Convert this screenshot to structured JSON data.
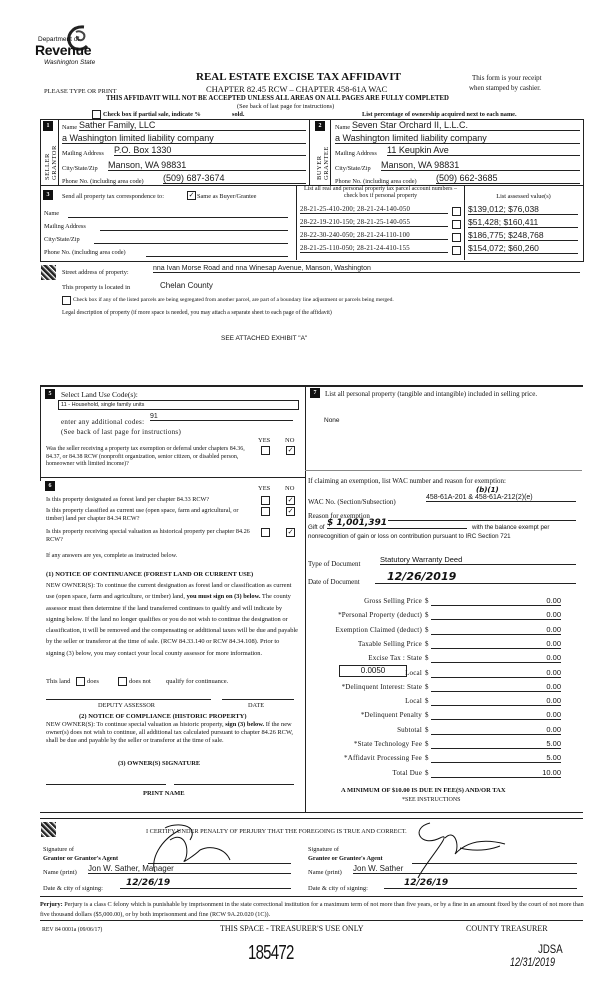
{
  "header": {
    "logo_text": {
      "line1": "Department of",
      "line2": "Revenue",
      "line3": "Washington State"
    },
    "title": "REAL ESTATE EXCISE TAX AFFIDAVIT",
    "chapter": "CHAPTER 82.45 RCW – CHAPTER 458-61A WAC",
    "type_or_print": "PLEASE TYPE OR PRINT",
    "receipt_note_1": "This form is your receipt",
    "receipt_note_2": "when stamped by cashier.",
    "warning": "THIS AFFIDAVIT WILL NOT BE ACCEPTED UNLESS ALL AREAS ON ALL PAGES ARE FULLY COMPLETED",
    "see_back": "(See back of last page for instructions)",
    "partial_sale_label": "Check box if partial sale, indicate %",
    "sold_label": "sold.",
    "ownership_note": "List percentage of ownership acquired next to each name."
  },
  "seller": {
    "number": "1",
    "side_label": "SELLER GRANTOR",
    "name_label": "Name",
    "name": "Sather Family, LLC",
    "line2": "a Washington limited liability company",
    "mailing_label": "Mailing Address",
    "mailing": "P.O. Box 1330",
    "city_label": "City/State/Zip",
    "city": "Manson, WA 98831",
    "phone_label": "Phone No. (including area code)",
    "phone": "(509) 687-3674"
  },
  "buyer": {
    "number": "2",
    "side_label": "BUYER GRANTEE",
    "name_label": "Name",
    "name": "Seven Star Orchard II, L.L.C.",
    "line2": "a Washington limited liability company",
    "mailing_label": "Mailing Address",
    "mailing": "11 Keupkin Ave",
    "city_label": "City/State/Zip",
    "city": "Manson, WA 98831",
    "phone_label": "Phone No. (including area code)",
    "phone": "(509) 662-3685"
  },
  "section3": {
    "number": "3",
    "send_label": "Send all property tax correspondence to:",
    "same_as_label": "Same as Buyer/Grantee",
    "same_as_checked": true,
    "name_label": "Name",
    "mailing_label": "Mailing Address",
    "city_label": "City/State/Zip",
    "phone_label": "Phone No. (including area code)",
    "parcel_header": "List all real and personal property tax parcel account numbers – check box if personal property",
    "value_header": "List assessed value(s)",
    "parcels": [
      {
        "number": "28-21-25-410-200; 28-21-24-140-050",
        "value": "$139,012; $76,038",
        "personal": false
      },
      {
        "number": "28-22-19-210-150; 28-21-25-140-055",
        "value": "$51,428; $160,411",
        "personal": false
      },
      {
        "number": "28-22-30-240-050; 28-21-24-110-100",
        "value": "$186,775; $248,768",
        "personal": false
      },
      {
        "number": "28-21-25-110-050; 28-21-24-410-155",
        "value": "$154,072; $60,260",
        "personal": false
      }
    ]
  },
  "section4": {
    "street_label": "Street address of property:",
    "street": "nna Ivan Morse Road and nna Winesap Avenue, Manson, Washington",
    "located_label": "This property is located in",
    "located": "Chelan County",
    "segregated_label": "Check box if any of the listed parcels are being segregated from another parcel, are part of a boundary line adjustment or parcels being merged.",
    "legal_label": "Legal description of property (if more space is needed, you may attach a separate sheet to each page of the affidavit)",
    "legal": "SEE ATTACHED EXHIBIT \"A\""
  },
  "section5": {
    "number": "5",
    "label": "Select Land Use Code(s):",
    "selected_code": "11 - Household, single family units",
    "additional_label": "enter any additional codes:",
    "additional": "91",
    "see_back": "(See back of last page for instructions)",
    "yes": "YES",
    "no": "NO",
    "question": "Was the seller receiving a property tax exemption or deferral under chapters 84.36, 84.37, or 84.38 RCW (nonprofit organization, senior citizen, or disabled person, homeowner with limited income)?",
    "answer": "no"
  },
  "section6": {
    "number": "6",
    "yes": "YES",
    "no": "NO",
    "questions": [
      {
        "text": "Is this property designated as forest land per chapter 84.33 RCW?",
        "answer": "no"
      },
      {
        "text": "Is this property classified as current use (open space, farm and agricultural, or timber) land per chapter 84.34 RCW?",
        "answer": "no"
      },
      {
        "text": "Is this property receiving special valuation as historical property per chapter 84.26 RCW?",
        "answer": "no"
      }
    ],
    "if_yes": "If any answers are yes, complete as instructed below.",
    "notice1_title": "(1) NOTICE OF CONTINUANCE (FOREST LAND OR CURRENT USE)",
    "notice1_a": "NEW OWNER(S): To continue the current designation as forest land or classification as current use (open space, farm and agriculture, or timber) land,",
    "notice1_bold": "you must sign on (3) below.",
    "notice1_b": "The county assessor must then determine if the land transferred continues to qualify and will indicate by signing below. If the land no longer qualifies or you do not wish to continue the designation or classification, it will be removed and the compensating or additional taxes will be due and payable by the seller or transferor at the time of sale. (RCW 84.33.140 or RCW 84.34.108). Prior to signing (3) below, you may contact your local county assessor for more information.",
    "this_land": "This land",
    "does": "does",
    "does_not": "does not",
    "qualify": "qualify for continuance.",
    "deputy_assessor": "DEPUTY ASSESSOR",
    "date": "DATE",
    "notice2_title": "(2) NOTICE OF COMPLIANCE (HISTORIC PROPERTY)",
    "notice2_a": "NEW OWNER(S): To continue special valuation as historic property,",
    "notice2_bold": "sign (3) below.",
    "notice2_b": "If the new owner(s) does not wish to continue, all additional tax calculated pursuant to chapter 84.26 RCW, shall be due and payable by the seller or transferor at the time of sale.",
    "owner_sig": "(3) OWNER(S) SIGNATURE",
    "print_name": "PRINT NAME"
  },
  "section7": {
    "number": "7",
    "label": "List all personal property (tangible and intangible) included in selling price.",
    "value": "None",
    "exemption_label": "If claiming an exemption, list WAC number and reason for exemption:",
    "wac_label": "WAC No. (Section/Subsection)",
    "wac": "458-61A-201 & 458-61A-212(2)(e)",
    "wac_handwritten": "(b)(1)",
    "reason_label": "Reason for exemption",
    "gift_prefix": "Gift of",
    "gift_amount": "$ 1,001,391",
    "gift_suffix": "with the balance exempt per",
    "reason_line2": "nonrecognition of gain or loss on contribution pursuant to IRC Section 721",
    "doc_type_label": "Type of Document",
    "doc_type": "Statutory Warranty Deed",
    "doc_date_label": "Date of Document",
    "doc_date": "12/26/2019",
    "tax_rate": "0.0050",
    "amounts": [
      {
        "label": "Gross Selling Price",
        "value": "0.00"
      },
      {
        "label": "*Personal Property (deduct)",
        "value": "0.00"
      },
      {
        "label": "Exemption Claimed (deduct)",
        "value": "0.00"
      },
      {
        "label": "Taxable Selling Price",
        "value": "0.00"
      },
      {
        "label": "Excise Tax : State",
        "value": "0.00"
      },
      {
        "label": "Local",
        "value": "0.00"
      },
      {
        "label": "*Delinquent Interest: State",
        "value": "0.00"
      },
      {
        "label": "Local",
        "value": "0.00"
      },
      {
        "label": "*Delinquent Penalty",
        "value": "0.00"
      },
      {
        "label": "Subtotal",
        "value": "0.00"
      },
      {
        "label": "*State Technology Fee",
        "value": "5.00"
      },
      {
        "label": "*Affidavit Processing Fee",
        "value": "5.00"
      },
      {
        "label": "Total Due",
        "value": "10.00"
      }
    ],
    "currency": "$",
    "minimum": "A MINIMUM OF $10.00 IS DUE IN FEE(S) AND/OR TAX",
    "see_instructions": "*SEE INSTRUCTIONS"
  },
  "certification": {
    "statement": "I CERTIFY UNDER PENALTY OF PERJURY THAT THE FOREGOING IS TRUE AND CORRECT.",
    "grantor_sig_label1": "Signature of",
    "grantor_sig_label2": "Grantor or Grantor's Agent",
    "grantee_sig_label1": "Signature of",
    "grantee_sig_label2": "Grantee or Grantee's Agent",
    "name_label": "Name (print)",
    "grantor_name": "Jon W. Sather, Manager",
    "grantee_name": "Jon W. Sather",
    "date_label": "Date & city of signing:",
    "grantor_date": "12/26/19",
    "grantee_date": "12/26/19"
  },
  "footer": {
    "perjury_bold": "Perjury:",
    "perjury": "Perjury is a class C felony which is punishable by imprisonment in the state correctional institution for a maximum term of not more than five years, or by a fine in an amount fixed by the court of not more than five thousand dollars ($5,000.00), or by both imprisonment and fine (RCW 9A.20.020 (1C)).",
    "rev": "REV 84 0001a (09/06/17)",
    "treasurer_space": "THIS SPACE - TREASURER'S USE ONLY",
    "county_treasurer": "COUNTY TREASURER",
    "stamp_number": "185472",
    "stamp_initials": "JDSA",
    "stamp_date": "12/31/2019"
  }
}
